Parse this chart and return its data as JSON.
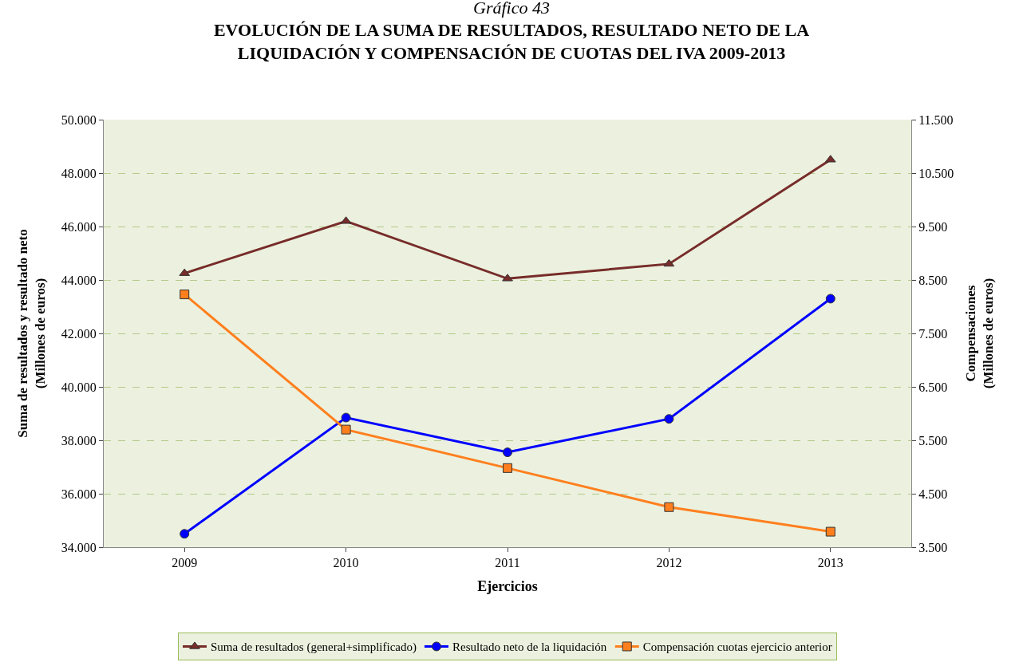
{
  "chart_data": {
    "type": "line",
    "title": "Gráfico 43",
    "subtitle": "EVOLUCIÓN DE LA SUMA DE RESULTADOS, RESULTADO NETO DE LA\nLIQUIDACIÓN Y COMPENSACIÓN DE CUOTAS DEL IVA 2009-2013",
    "xlabel": "Ejercicios",
    "ylabel": "Suma de resultados y resultado neto\n(Millones de euros)",
    "y2label": "Compensaciones\n(Millones de euros)",
    "categories": [
      "2009",
      "2010",
      "2011",
      "2012",
      "2013"
    ],
    "series": [
      {
        "name": "Suma de resultados (general+simplificado)",
        "color": "#772c2a",
        "marker": "triangle",
        "values": [
          44250,
          46200,
          44050,
          44600,
          48500
        ]
      },
      {
        "name": "Resultado neto de la liquidación",
        "color": "#0000ff",
        "marker": "circle",
        "values": [
          34500,
          38850,
          37550,
          38800,
          43300
        ]
      },
      {
        "name": "Compensación cuotas ejercicio anterior",
        "color": "#ff7f1e",
        "marker": "square",
        "axis": "y2",
        "values": [
          8230,
          5700,
          4980,
          4250,
          3790
        ]
      }
    ],
    "ylim": [
      34000,
      50000
    ],
    "yticks": [
      {
        "value": 34000,
        "label": "34.000"
      },
      {
        "value": 36000,
        "label": "36.000"
      },
      {
        "value": 38000,
        "label": "38.000"
      },
      {
        "value": 40000,
        "label": "40.000"
      },
      {
        "value": 42000,
        "label": "42.000"
      },
      {
        "value": 44000,
        "label": "44.000"
      },
      {
        "value": 46000,
        "label": "46.000"
      },
      {
        "value": 48000,
        "label": "48.000"
      },
      {
        "value": 50000,
        "label": "50.000"
      }
    ],
    "y2lim": [
      3500,
      11500
    ],
    "y2ticks": [
      {
        "value": 3500,
        "label": "3.500"
      },
      {
        "value": 4500,
        "label": "4.500"
      },
      {
        "value": 5500,
        "label": "5.500"
      },
      {
        "value": 6500,
        "label": "6.500"
      },
      {
        "value": 7500,
        "label": "7.500"
      },
      {
        "value": 8500,
        "label": "8.500"
      },
      {
        "value": 9500,
        "label": "9.500"
      },
      {
        "value": 10500,
        "label": "10.500"
      },
      {
        "value": 11500,
        "label": "11.500"
      }
    ],
    "grid": "y",
    "legend": "bottom",
    "line_style": "solid"
  }
}
